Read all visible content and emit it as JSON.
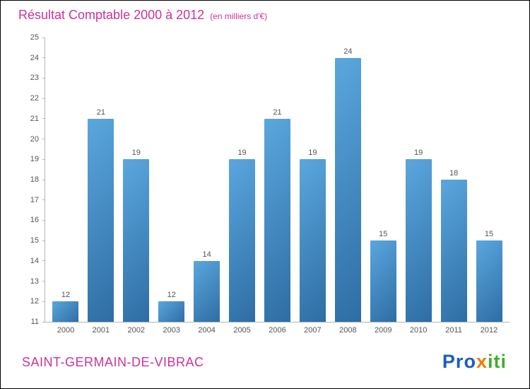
{
  "title": {
    "main": "Résultat Comptable 2000 à 2012",
    "unit": "(en milliers d'€)"
  },
  "footer": {
    "location": "SAINT-GERMAIN-DE-VIBRAC"
  },
  "logo": {
    "name": "Proxiti",
    "letters": [
      {
        "ch": "P",
        "color": "#1a5cc4"
      },
      {
        "ch": "r",
        "color": "#1a5cc4"
      },
      {
        "ch": "o",
        "color": "#1a5cc4"
      },
      {
        "ch": "x",
        "color": "#f07d00"
      },
      {
        "ch": "i",
        "color": "#3fae29"
      },
      {
        "ch": "t",
        "color": "#3fae29"
      },
      {
        "ch": "i",
        "color": "#3fae29"
      }
    ]
  },
  "colors": {
    "title": "#cc3399",
    "bar_top": "#5aa7de",
    "bar_bottom": "#2e6da4",
    "axis": "#b5b5b5",
    "tick_label": "#555555",
    "value_label": "#555555"
  },
  "chart_data": {
    "type": "bar",
    "title": "Résultat Comptable 2000 à 2012",
    "subtitle": "(en milliers d'€)",
    "categories": [
      "2000",
      "2001",
      "2002",
      "2003",
      "2004",
      "2005",
      "2006",
      "2007",
      "2008",
      "2009",
      "2010",
      "2011",
      "2012"
    ],
    "values": [
      12,
      21,
      19,
      12,
      14,
      19,
      21,
      19,
      24,
      15,
      19,
      18,
      15
    ],
    "xlabel": "",
    "ylabel": "",
    "ylim": [
      11,
      25
    ],
    "ytick_step": 1,
    "grid": false,
    "legend": false
  }
}
